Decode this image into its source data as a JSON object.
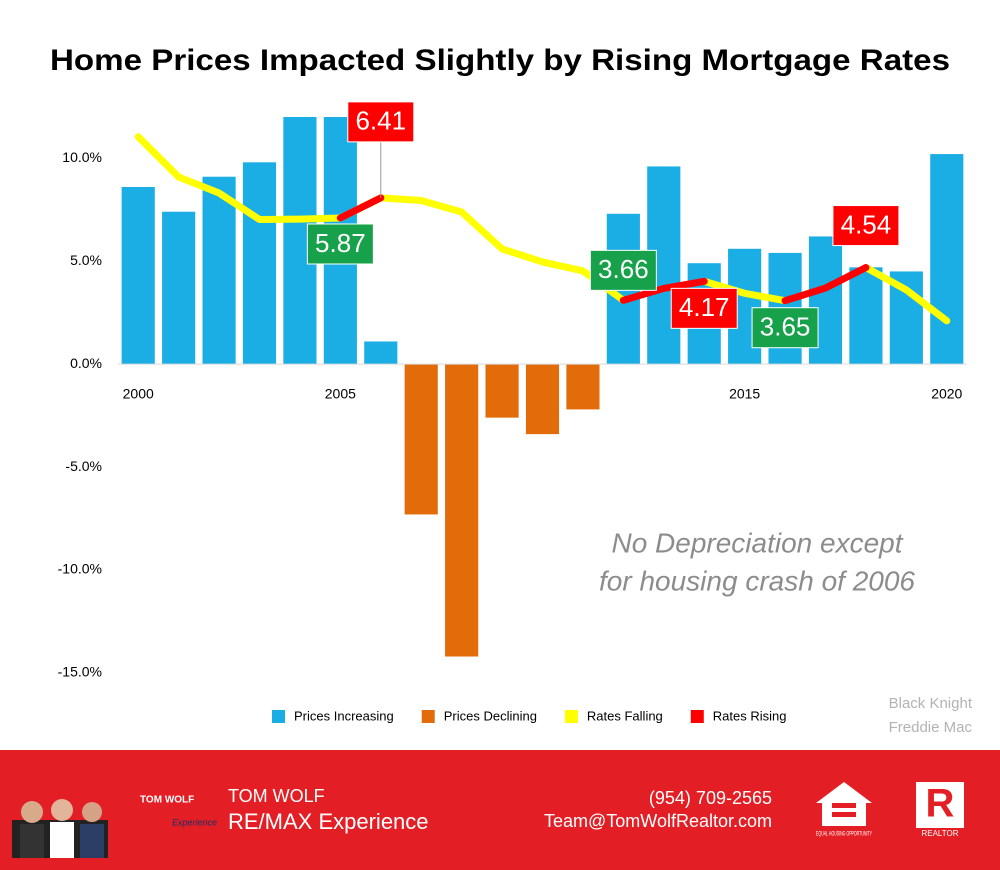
{
  "chart_data": {
    "type": "bar",
    "title": "Home Prices Impacted Slightly by Rising Mortgage Rates",
    "x": [
      2000,
      2001,
      2002,
      2003,
      2004,
      2005,
      2006,
      2007,
      2008,
      2009,
      2010,
      2011,
      2012,
      2013,
      2014,
      2015,
      2016,
      2017,
      2018,
      2019,
      2020
    ],
    "xlim": [
      1999.5,
      2020.5
    ],
    "xticks": [
      2000,
      2005,
      2015,
      2020
    ],
    "ylim": [
      -15,
      12
    ],
    "yticks": [
      {
        "value": 10,
        "label": "10.0%"
      },
      {
        "value": 5,
        "label": "5.0%"
      },
      {
        "value": 0,
        "label": "0.0%"
      },
      {
        "value": -5,
        "label": "-5.0%"
      },
      {
        "value": -10,
        "label": "-10.0%"
      },
      {
        "value": -15,
        "label": "-15.0%"
      }
    ],
    "y2lim": [
      -6.34,
      8.58
    ],
    "grid": false,
    "legend": "bottom",
    "series": [
      {
        "name": "Prices Increasing",
        "type": "bar",
        "color": "#1aaee5",
        "values": [
          8.6,
          7.4,
          9.1,
          9.8,
          12,
          12,
          1.1,
          null,
          null,
          null,
          null,
          null,
          7.3,
          9.6,
          4.9,
          5.6,
          5.4,
          6.2,
          4.7,
          4.5,
          10.2
        ]
      },
      {
        "name": "Prices Declining",
        "type": "bar",
        "color": "#e36c0a",
        "values": [
          null,
          null,
          null,
          null,
          null,
          null,
          null,
          -7.3,
          -14.2,
          -2.6,
          -3.4,
          -2.2,
          null,
          null,
          null,
          null,
          null,
          null,
          null,
          null,
          null
        ]
      },
      {
        "name": "Rates Falling",
        "type": "line",
        "axis": "y2",
        "color": "#ffff00",
        "label_color": "#17a14a",
        "values": [
          8.05,
          6.97,
          6.54,
          5.83,
          5.84,
          5.87,
          6.41,
          6.34,
          6.03,
          5.04,
          4.69,
          4.45,
          3.66,
          null,
          4.17,
          3.85,
          3.65,
          null,
          4.54,
          3.94,
          3.11
        ],
        "value_labels": [
          null,
          null,
          null,
          null,
          null,
          "5.87",
          null,
          null,
          null,
          null,
          null,
          null,
          "3.66",
          null,
          null,
          null,
          "3.65",
          null,
          null,
          null,
          null
        ]
      },
      {
        "name": "Rates Rising",
        "type": "line",
        "axis": "y2",
        "color": "#ff0000",
        "label_color": "#ff0000",
        "values": [
          null,
          null,
          null,
          null,
          null,
          5.87,
          6.41,
          null,
          null,
          null,
          null,
          null,
          3.66,
          3.98,
          4.17,
          null,
          3.65,
          3.99,
          4.54,
          null,
          null
        ],
        "value_labels": [
          null,
          null,
          null,
          null,
          null,
          null,
          "6.41",
          null,
          null,
          null,
          null,
          null,
          null,
          null,
          "4.17",
          null,
          null,
          null,
          "4.54",
          null,
          null
        ]
      }
    ],
    "annotations": [
      "No Depreciation except",
      "for housing crash of 2006"
    ],
    "source": [
      "Black Knight",
      "Freddie Mac"
    ]
  },
  "footer": {
    "logo": [
      "TOM WOLF",
      "Experience"
    ],
    "name": "TOM WOLF",
    "company": "RE/MAX Experience",
    "phone": "(954) 709-2565",
    "email": "Team@TomWolfRealtor.com",
    "equal_housing": "EQUAL HOUSING OPPORTUNITY",
    "realtor": "REALTOR"
  }
}
